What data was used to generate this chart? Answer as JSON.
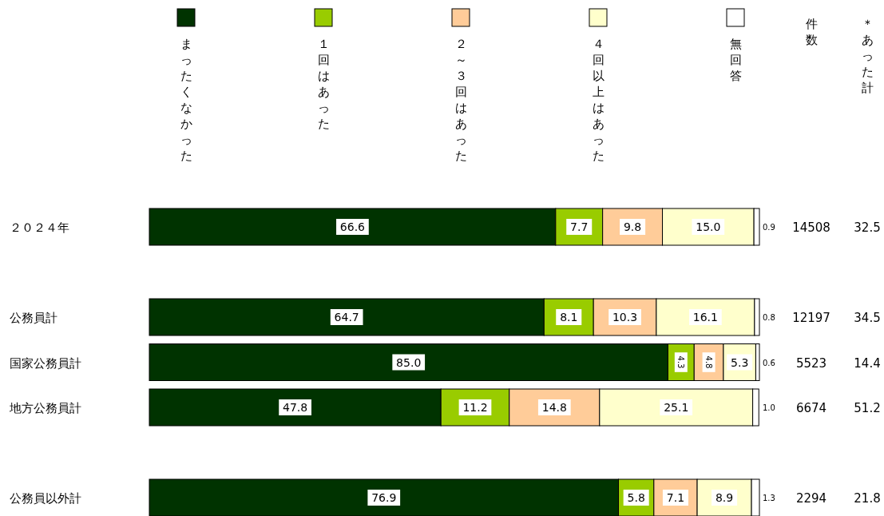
{
  "chart_data": {
    "type": "bar",
    "orientation": "horizontal",
    "stacked": true,
    "legend": "top",
    "categories": [
      "２０２４年",
      null,
      "公務員計",
      "国家公務員計",
      "地方公務員計",
      null,
      "公務員以外計"
    ],
    "series": [
      {
        "name": "まったくなかった",
        "color": "#003300",
        "values": [
          66.6,
          null,
          64.7,
          85.0,
          47.8,
          null,
          76.9
        ],
        "value_labels": [
          "66.6",
          null,
          "64.7",
          "85.0",
          "47.8",
          null,
          "76.9"
        ]
      },
      {
        "name": "１回はあった",
        "color": "#99cc00",
        "values": [
          7.7,
          null,
          8.1,
          4.3,
          11.2,
          null,
          5.8
        ],
        "value_labels": [
          "7.7",
          null,
          "8.1",
          "4.3",
          "11.2",
          null,
          "5.8"
        ]
      },
      {
        "name": "２～３回はあった",
        "color": "#ffcc99",
        "values": [
          9.8,
          null,
          10.3,
          4.8,
          14.8,
          null,
          7.1
        ],
        "value_labels": [
          "9.8",
          null,
          "10.3",
          "4.8",
          "14.8",
          null,
          "7.1"
        ]
      },
      {
        "name": "４回以上はあった",
        "color": "#ffffcc",
        "values": [
          15.0,
          null,
          16.1,
          5.3,
          25.1,
          null,
          8.9
        ],
        "value_labels": [
          "15.0",
          null,
          "16.1",
          "5.3",
          "25.1",
          null,
          "8.9"
        ]
      },
      {
        "name": "無回答",
        "color": "#ffffff",
        "values": [
          0.9,
          null,
          0.8,
          0.6,
          1.0,
          null,
          1.3
        ],
        "value_labels": [
          "0.9",
          null,
          "0.8",
          "0.6",
          "1.0",
          null,
          "1.3"
        ]
      }
    ],
    "annotations": [
      "件数",
      "＊あった計",
      "14508",
      "32.5",
      "12197",
      "34.5",
      "5523",
      "14.4",
      "6674",
      "51.2",
      "2294",
      "21.8"
    ]
  }
}
